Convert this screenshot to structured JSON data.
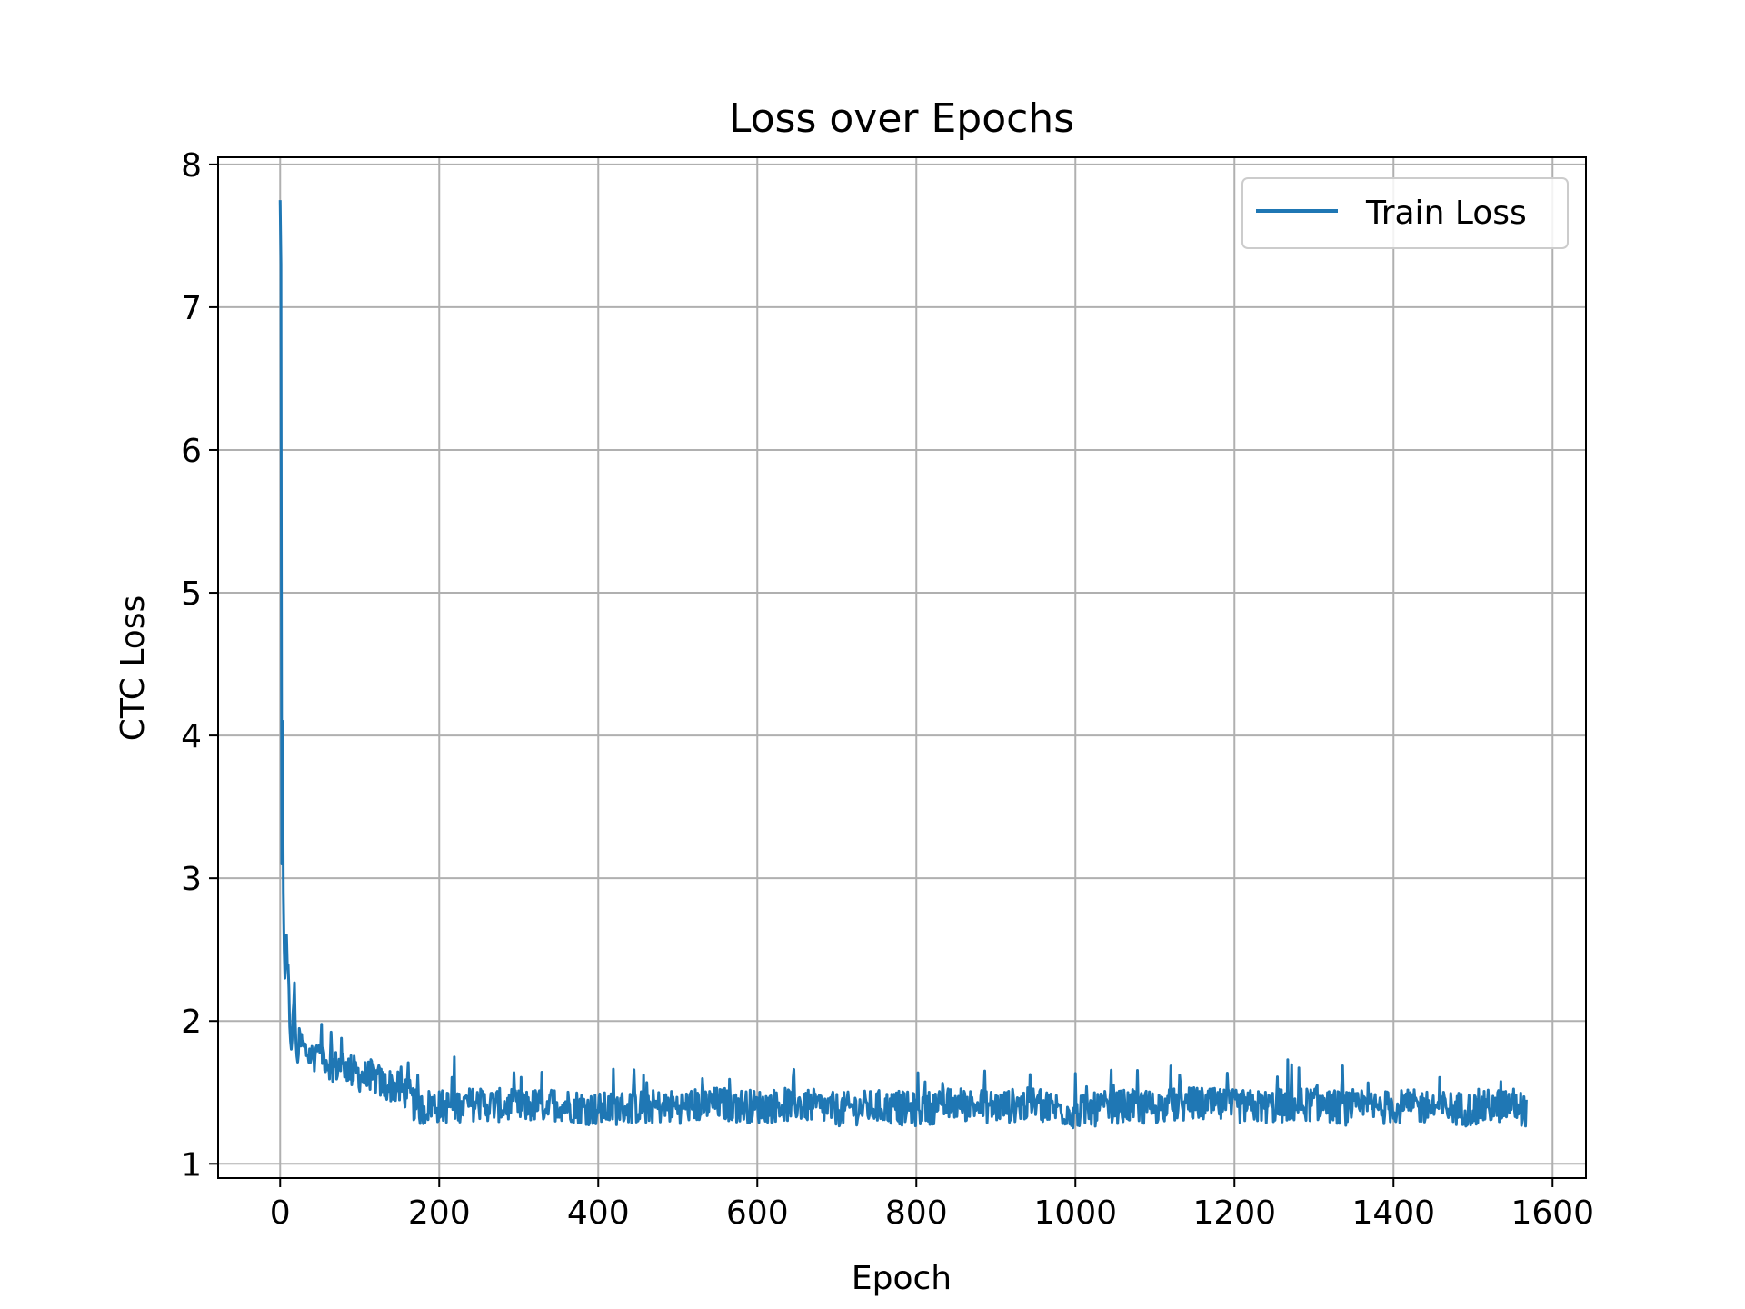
{
  "chart_data": {
    "type": "line",
    "title": "Loss over Epochs",
    "xlabel": "Epoch",
    "ylabel": "CTC Loss",
    "xlim": [
      -78,
      1642
    ],
    "ylim": [
      0.9,
      8.05
    ],
    "xticks": [
      0,
      200,
      400,
      600,
      800,
      1000,
      1200,
      1400,
      1600
    ],
    "yticks": [
      1,
      2,
      3,
      4,
      5,
      6,
      7,
      8
    ],
    "xtick_labels": [
      "0",
      "200",
      "400",
      "600",
      "800",
      "1000",
      "1200",
      "1400",
      "1600"
    ],
    "ytick_labels": [
      "1",
      "2",
      "3",
      "4",
      "5",
      "6",
      "7",
      "8"
    ],
    "grid": true,
    "legend_position": "top-right",
    "series": [
      {
        "name": "Train Loss",
        "color": "#1f77b4",
        "x": [
          0,
          1,
          2,
          3,
          4,
          5,
          6,
          8,
          10,
          12,
          15,
          18,
          20,
          25,
          30,
          40,
          50,
          60,
          70,
          80,
          90,
          100,
          110,
          120,
          130,
          140,
          150,
          160,
          170,
          180,
          190,
          200,
          250,
          300,
          350,
          400,
          450,
          500,
          550,
          600,
          650,
          700,
          750,
          800,
          850,
          900,
          950,
          1000,
          1050,
          1100,
          1150,
          1200,
          1250,
          1300,
          1350,
          1400,
          1450,
          1500,
          1550,
          1567
        ],
        "y": [
          7.75,
          7.3,
          3.1,
          4.1,
          2.9,
          2.5,
          2.3,
          2.4,
          2.3,
          2.0,
          1.8,
          2.3,
          1.75,
          1.85,
          1.8,
          1.75,
          1.8,
          1.72,
          1.68,
          1.7,
          1.65,
          1.62,
          1.6,
          1.6,
          1.55,
          1.55,
          1.52,
          1.5,
          1.4,
          1.38,
          1.42,
          1.4,
          1.42,
          1.4,
          1.42,
          1.38,
          1.4,
          1.4,
          1.42,
          1.4,
          1.42,
          1.38,
          1.4,
          1.38,
          1.42,
          1.4,
          1.42,
          1.36,
          1.4,
          1.4,
          1.42,
          1.4,
          1.4,
          1.42,
          1.38,
          1.4,
          1.4,
          1.38,
          1.42,
          1.37
        ],
        "noise_amplitude": 0.12
      }
    ]
  }
}
